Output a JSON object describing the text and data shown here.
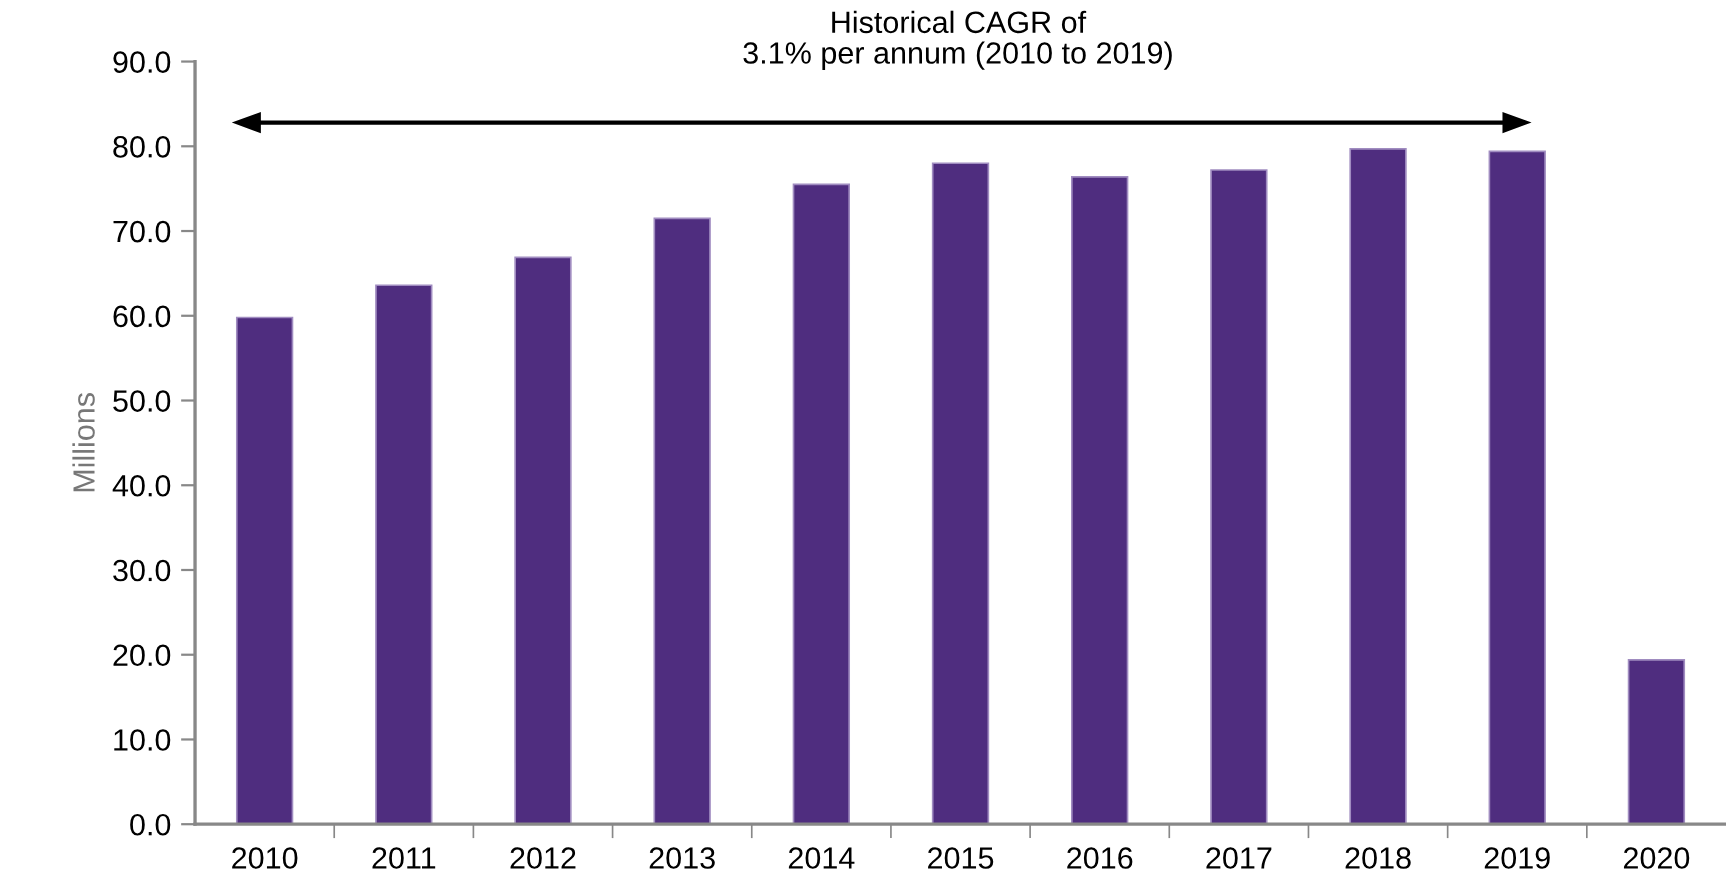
{
  "chart_data": {
    "type": "bar",
    "ylabel": "Millions",
    "categories": [
      "2010",
      "2011",
      "2012",
      "2013",
      "2014",
      "2015",
      "2016",
      "2017",
      "2018",
      "2019",
      "2020"
    ],
    "values": [
      59.8,
      63.6,
      66.9,
      71.5,
      75.5,
      78.0,
      76.4,
      77.2,
      79.7,
      79.4,
      19.4
    ],
    "color": "#4f2d7f",
    "ylim": [
      0,
      90
    ],
    "yticks": [
      {
        "value": 0,
        "label": "0.0"
      },
      {
        "value": 10,
        "label": "10.0"
      },
      {
        "value": 20,
        "label": "20.0"
      },
      {
        "value": 30,
        "label": "30.0"
      },
      {
        "value": 40,
        "label": "40.0"
      },
      {
        "value": 50,
        "label": "50.0"
      },
      {
        "value": 60,
        "label": "60.0"
      },
      {
        "value": 70,
        "label": "70.0"
      },
      {
        "value": 80,
        "label": "80.0"
      },
      {
        "value": 90,
        "label": "90.0"
      }
    ],
    "grid": false,
    "legend": false,
    "annotations": [
      "Historical CAGR of\n3.1% per annum (2010 to 2019)"
    ]
  }
}
